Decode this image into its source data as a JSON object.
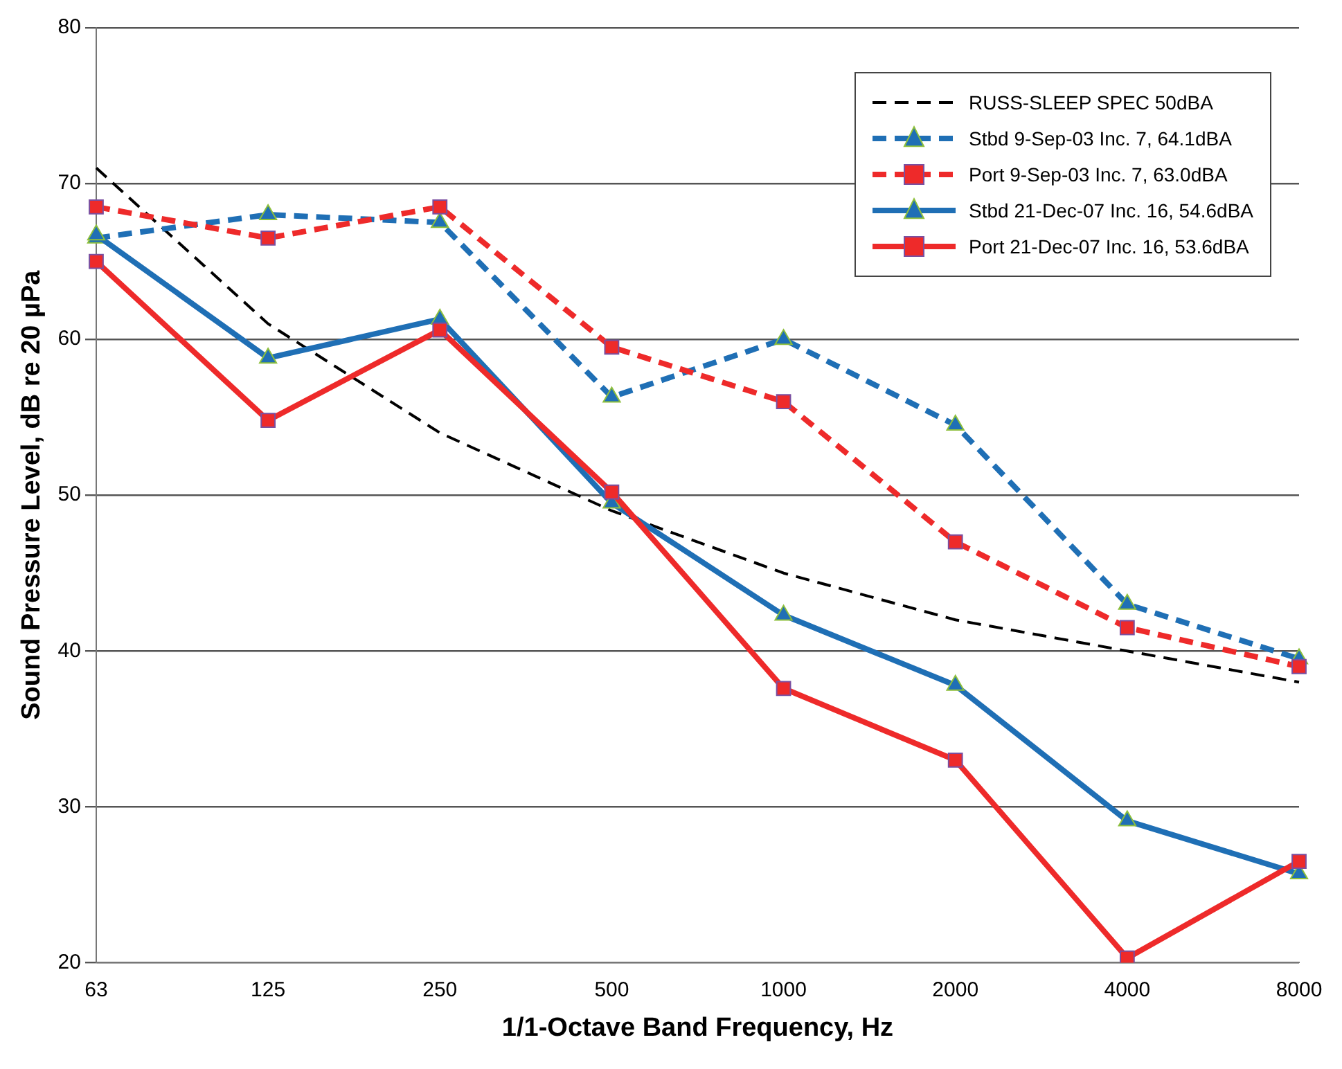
{
  "chart_data": {
    "type": "line",
    "xlabel": "1/1-Octave Band Frequency, Hz",
    "ylabel": "Sound Pressure Level, dB re 20 µPa",
    "categories": [
      "63",
      "125",
      "250",
      "500",
      "1000",
      "2000",
      "4000",
      "8000"
    ],
    "ylim": [
      20,
      80
    ],
    "yticks": [
      20,
      30,
      40,
      50,
      60,
      70,
      80
    ],
    "grid": "y",
    "legend": "top right",
    "series": [
      {
        "name": "RUSS-SLEEP SPEC 50dBA",
        "color": "#000000",
        "marker": "none",
        "line_style": "dashed",
        "values": [
          71,
          61,
          54,
          49,
          45,
          42,
          40,
          38
        ]
      },
      {
        "name": "Stbd 9-Sep-03 Inc. 7, 64.1dBA",
        "color": "#1f6fb5",
        "marker": "triangle",
        "line_style": "dashed",
        "values": [
          66.5,
          68,
          67.5,
          56.3,
          60,
          54.5,
          43,
          39.5
        ]
      },
      {
        "name": "Port 9-Sep-03 Inc. 7, 63.0dBA",
        "color": "#ee2a2a",
        "marker": "square",
        "line_style": "dashed",
        "values": [
          68.5,
          66.5,
          68.5,
          59.5,
          56,
          47,
          41.5,
          39
        ]
      },
      {
        "name": "Stbd 21-Dec-07 Inc. 16, 54.6dBA",
        "color": "#1f6fb5",
        "marker": "triangle",
        "line_style": "solid",
        "values": [
          66.7,
          58.8,
          61.3,
          49.5,
          42.3,
          37.8,
          29.1,
          25.7
        ]
      },
      {
        "name": "Port 21-Dec-07 Inc. 16, 53.6dBA",
        "color": "#ee2a2a",
        "marker": "square",
        "line_style": "solid",
        "values": [
          65,
          54.8,
          60.6,
          50.2,
          37.6,
          33,
          20.3,
          26.5
        ]
      }
    ]
  }
}
